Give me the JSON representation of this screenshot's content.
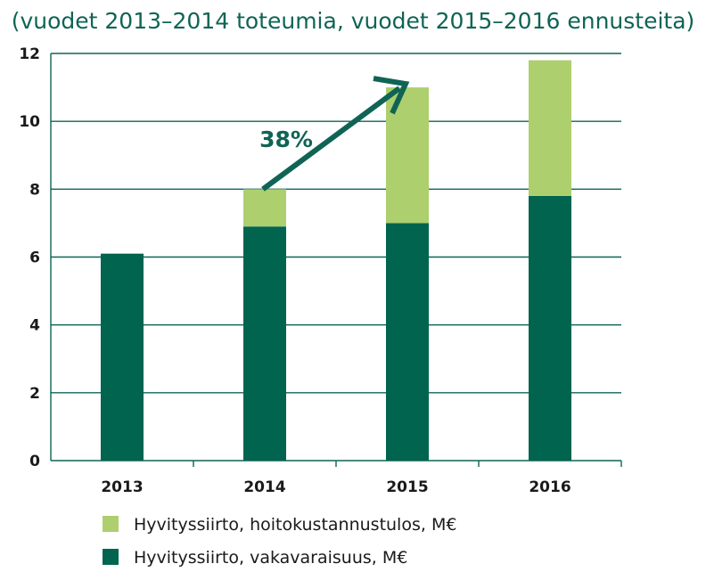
{
  "chart_data": {
    "type": "bar",
    "stacked": true,
    "title": "(vuodet 2013–2014 toteumia, vuodet 2015–2016 ennusteita)",
    "categories": [
      "2013",
      "2014",
      "2015",
      "2016"
    ],
    "series": [
      {
        "name": "Hyvityssiirto, vakavaraisuus, M€",
        "values": [
          6.1,
          6.9,
          7.0,
          7.8
        ],
        "color": "#00644f"
      },
      {
        "name": "Hyvityssiirto, hoitokustannustulos, M€",
        "values": [
          0,
          1.1,
          4.0,
          4.0
        ],
        "color": "#aecf6e"
      }
    ],
    "ylim": [
      0,
      12
    ],
    "yticks": [
      "0",
      "2",
      "4",
      "6",
      "8",
      "10",
      "12"
    ],
    "grid": true,
    "legend_position": "bottom-left",
    "annotation": {
      "text": "38%",
      "from_value": 8,
      "from_category": "2014",
      "to_value": 11,
      "to_category": "2015",
      "color": "#0f6455"
    }
  }
}
